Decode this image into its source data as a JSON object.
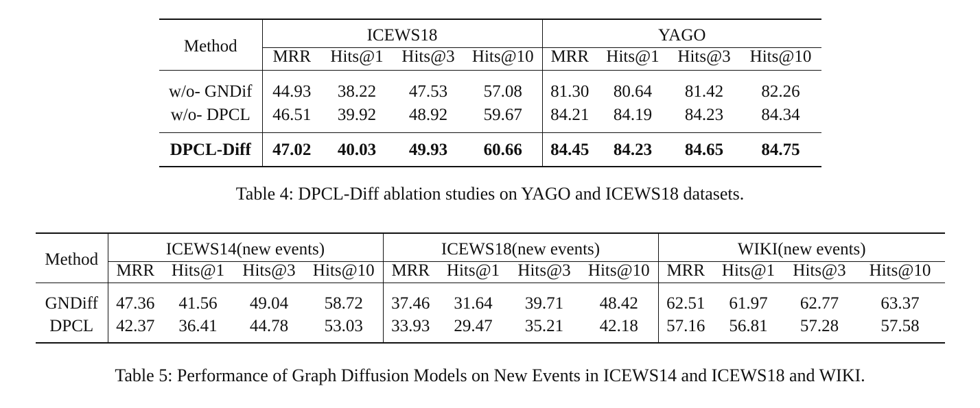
{
  "table4": {
    "method_header": "Method",
    "groups": [
      "ICEWS18",
      "YAGO"
    ],
    "metrics": [
      "MRR",
      "Hits@1",
      "Hits@3",
      "Hits@10"
    ],
    "rows": [
      {
        "method": "w/o- GNDif",
        "values": [
          "44.93",
          "38.22",
          "47.53",
          "57.08",
          "81.30",
          "80.64",
          "81.42",
          "82.26"
        ]
      },
      {
        "method": "w/o- DPCL",
        "values": [
          "46.51",
          "39.92",
          "48.92",
          "59.67",
          "84.21",
          "84.19",
          "84.23",
          "84.34"
        ]
      },
      {
        "method": "DPCL-Diff",
        "bold": true,
        "values": [
          "47.02",
          "40.03",
          "49.93",
          "60.66",
          "84.45",
          "84.23",
          "84.65",
          "84.75"
        ]
      }
    ],
    "caption": "Table 4: DPCL-Diff ablation studies on YAGO and ICEWS18 datasets."
  },
  "table5": {
    "method_header": "Method",
    "groups": [
      "ICEWS14(new events)",
      "ICEWS18(new events)",
      "WIKI(new events)"
    ],
    "metrics": [
      "MRR",
      "Hits@1",
      "Hits@3",
      "Hits@10"
    ],
    "rows": [
      {
        "method": "GNDiff",
        "values": [
          "47.36",
          "41.56",
          "49.04",
          "58.72",
          "37.46",
          "31.64",
          "39.71",
          "48.42",
          "62.51",
          "61.97",
          "62.77",
          "63.37"
        ]
      },
      {
        "method": "DPCL",
        "values": [
          "42.37",
          "36.41",
          "44.78",
          "53.03",
          "33.93",
          "29.47",
          "35.21",
          "42.18",
          "57.16",
          "56.81",
          "57.28",
          "57.58"
        ]
      }
    ],
    "caption": "Table 5: Performance of Graph Diffusion Models on New Events in ICEWS14 and ICEWS18 and WIKI."
  }
}
